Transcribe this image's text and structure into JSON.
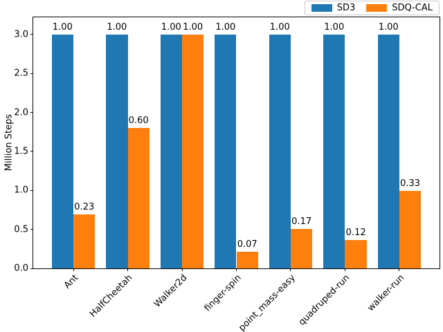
{
  "ylabel": "Million Steps",
  "chart_data": {
    "type": "bar",
    "ylabel": "Million Steps",
    "categories": [
      "Ant",
      "HalfCheetah",
      "Walker2d",
      "finger-spin",
      "point_mass-easy",
      "quadruped-run",
      "walker-run"
    ],
    "series": [
      {
        "name": "SD3",
        "color": "#1f77b4",
        "values": [
          3.0,
          3.0,
          3.0,
          3.0,
          3.0,
          3.0,
          3.0
        ],
        "bar_labels": [
          "1.00",
          "1.00",
          "1.00",
          "1.00",
          "1.00",
          "1.00",
          "1.00"
        ]
      },
      {
        "name": "SDQ-CAL",
        "color": "#ff7f0e",
        "values": [
          0.69,
          1.8,
          3.0,
          0.21,
          0.51,
          0.36,
          0.99
        ],
        "bar_labels": [
          "0.23",
          "0.60",
          "1.00",
          "0.07",
          "0.17",
          "0.12",
          "0.33"
        ]
      }
    ],
    "yticks": [
      "0.0",
      "0.5",
      "1.0",
      "1.5",
      "2.0",
      "2.5",
      "3.0"
    ],
    "ylim": [
      0,
      3.22
    ],
    "xlim": [
      -0.74,
      6.74
    ],
    "bar_width": 0.4,
    "grid": false,
    "legend_position": "upper-right-above-axes"
  }
}
